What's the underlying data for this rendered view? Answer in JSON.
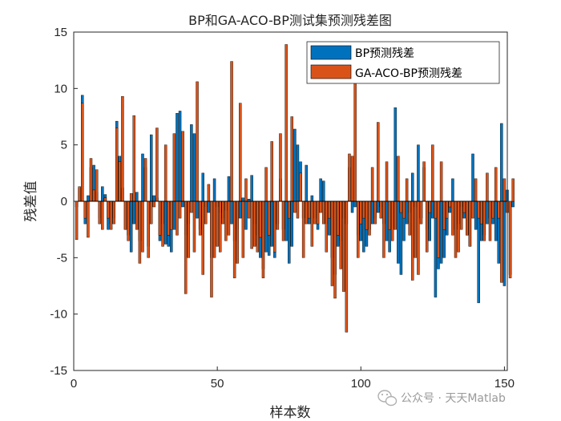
{
  "chart_data": {
    "type": "bar",
    "title": "BP和GA-ACO-BP测试集预测残差图",
    "xlabel": "样本数",
    "ylabel": "残差值",
    "xlim": [
      0,
      151
    ],
    "ylim": [
      -15,
      15
    ],
    "xticks": [
      0,
      50,
      100,
      150
    ],
    "yticks": [
      -15,
      -10,
      -5,
      0,
      5,
      10,
      15
    ],
    "grid": false,
    "legend_position": "top-right",
    "colors": {
      "BP预测残差": "#0072BD",
      "GA-ACO-BP预测残差": "#D95319"
    },
    "series": [
      {
        "name": "BP预测残差",
        "values": [
          -0.5,
          1.2,
          9.4,
          -2.0,
          0.5,
          3.0,
          3.2,
          0.8,
          -1.5,
          1.3,
          0.6,
          -2.5,
          -2.0,
          -1.5,
          7.1,
          4.0,
          1.2,
          -2.5,
          -3.0,
          -4.5,
          -2.0,
          0.8,
          -3.5,
          4.2,
          3.0,
          -4.0,
          5.9,
          0.5,
          0.3,
          -3.5,
          -2.0,
          -3.8,
          -4.0,
          -4.5,
          -2.5,
          7.8,
          8.0,
          -0.5,
          -3.0,
          -2.0,
          6.8,
          6.0,
          -1.5,
          -2.5,
          2.5,
          -0.5,
          -1.0,
          -5.0,
          2.0,
          -0.5,
          -1.0,
          -1.5,
          -0.8,
          2.2,
          -2.0,
          -3.5,
          -2.5,
          -1.5,
          0.3,
          -2.5,
          0.2,
          2.3,
          -2.0,
          -3.0,
          -5.0,
          -6.0,
          -4.5,
          -4.8,
          -4.0,
          -5.0,
          -2.0,
          2.0,
          -2.5,
          -3.5,
          -5.5,
          -4.0,
          6.4,
          5.0,
          3.5,
          -1.5,
          3.2,
          -2.0,
          0.5,
          -1.5,
          -2.5,
          2.0,
          1.8,
          -2.0,
          -3.0,
          -5.0,
          -6.5,
          -4.0,
          -3.5,
          -1.5,
          -2.0,
          3.0,
          -1.0,
          -0.5,
          -3.0,
          -3.5,
          -4.5,
          -4.0,
          -2.5,
          -2.0,
          -1.5,
          -1.0,
          -0.5,
          -2.0,
          -3.5,
          -4.5,
          -2.5,
          8.3,
          -5.5,
          -6.5,
          -3.5,
          -2.0,
          -1.0,
          2.5,
          -0.5,
          5.0,
          -1.5,
          3.0,
          -2.5,
          -3.5,
          -1.5,
          -8.5,
          -6.0,
          -5.5,
          -5.0,
          -3.0,
          -1.0,
          2.0,
          -2.5,
          -2.0,
          -0.5,
          -1.5,
          -3.0,
          -4.0,
          4.2,
          -2.5,
          -9.0,
          -3.5,
          -3.0,
          -2.0,
          -1.5,
          -2.0,
          -3.5,
          -5.5,
          6.9,
          -7.5,
          1.0,
          -6.5,
          -0.5
        ],
        "note_ignore": ""
      },
      {
        "name": "GA-ACO-BP预测残差",
        "values": [
          -3.4,
          1.3,
          8.7,
          -1.5,
          -3.2,
          3.8,
          1.0,
          2.8,
          -2.0,
          -2.5,
          0.3,
          -1.5,
          -2.5,
          -2.0,
          6.5,
          3.5,
          9.3,
          -2.5,
          -3.5,
          0.7,
          7.6,
          -2.5,
          -5.5,
          -4.5,
          3.8,
          -5.0,
          -2.0,
          -0.5,
          6.5,
          -3.0,
          -4.0,
          5.0,
          -3.0,
          -2.5,
          6.0,
          -3.0,
          -1.5,
          6.2,
          -8.2,
          -5.0,
          -1.0,
          -4.5,
          10.6,
          -3.0,
          -6.5,
          -2.0,
          1.5,
          -8.5,
          -5.0,
          -4.0,
          -4.5,
          -2.0,
          -3.5,
          -3.0,
          12.4,
          -6.8,
          -5.5,
          8.7,
          -5.0,
          2.0,
          -1.5,
          -4.2,
          -4.0,
          -4.5,
          -3.2,
          -6.8,
          3.0,
          -3.0,
          5.3,
          -4.5,
          -2.5,
          6.0,
          -3.5,
          13.9,
          -1.5,
          7.5,
          -1.0,
          -1.5,
          2.5,
          -5.0,
          -2.0,
          -1.5,
          -4.0,
          -2.0,
          -2.0,
          -1.0,
          -2.0,
          -4.5,
          -1.5,
          -7.5,
          -8.6,
          -3.0,
          -6.0,
          -8.0,
          -11.6,
          4.2,
          4.0,
          10.6,
          -5.0,
          -2.0,
          -1.5,
          -2.5,
          -3.0,
          3.0,
          -2.0,
          7.0,
          -1.5,
          -5.0,
          3.5,
          -2.5,
          -3.5,
          -2.5,
          4.0,
          -1.0,
          -1.5,
          2.0,
          -3.0,
          -7.0,
          -5.0,
          -6.5,
          -2.0,
          3.5,
          -4.5,
          -1.0,
          5.0,
          -1.5,
          -5.0,
          3.5,
          -2.5,
          -1.5,
          -0.5,
          -3.0,
          -5.0,
          -4.5,
          -2.5,
          -1.0,
          -3.0,
          -4.0,
          -1.5,
          2.0,
          -1.5,
          -2.0,
          -3.5,
          2.5,
          -3.5,
          -1.5,
          3.0,
          -1.5,
          -7.2,
          2.0,
          -1.0,
          -6.8,
          2.0
        ],
        "note_ignore": ""
      }
    ]
  },
  "watermark": {
    "text": "公众号 · 天天Matlab",
    "icon": "wechat-icon"
  }
}
